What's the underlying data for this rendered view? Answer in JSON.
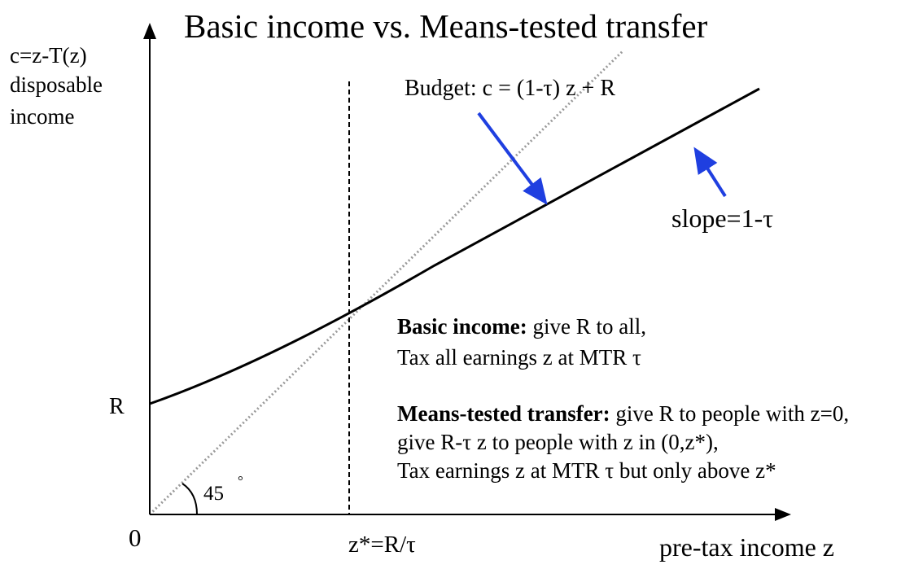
{
  "title": "Basic income vs. Means-tested transfer",
  "y_axis_label": [
    "c=z-T(z)",
    "disposable",
    "income"
  ],
  "x_axis_label": "pre-tax income z",
  "origin_label": "0",
  "r_label": "R",
  "zstar_label": "z*=R/τ",
  "angle_label": "45",
  "degree_mark": "°",
  "budget_label": "Budget: c = (1-τ) z + R",
  "slope_label": "slope=1-τ",
  "basic_income": {
    "heading": "Basic income:",
    "line1_rest": " give R to all,",
    "line2": "Tax all earnings z at MTR τ"
  },
  "means_tested": {
    "heading": "Means-tested transfer:",
    "line1_rest": " give R to people with z=0,",
    "line2": "give R-τ z to people with z in (0,z*),",
    "line3": "Tax earnings z at MTR τ but only above z*"
  },
  "colors": {
    "arrow": "#1f3fe0",
    "line": "#000000",
    "guide": "#9a9a9a"
  }
}
